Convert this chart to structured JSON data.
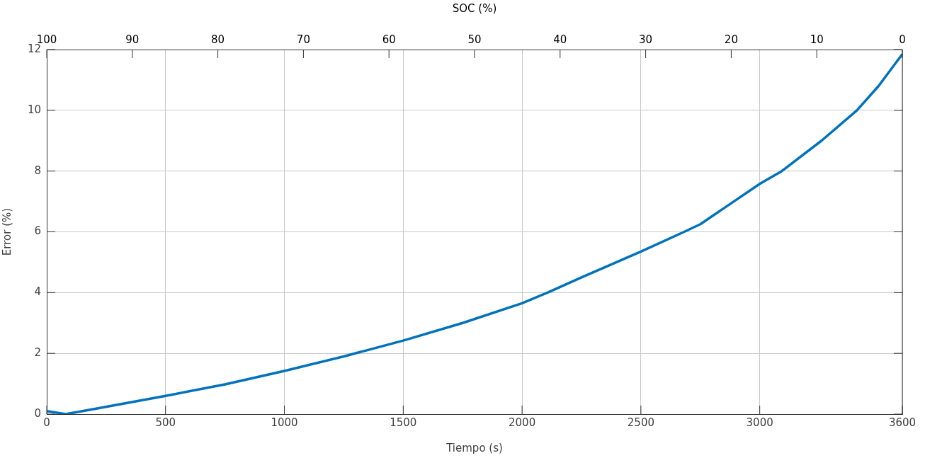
{
  "chart_data": {
    "type": "line",
    "xlabel": "Tiempo (s)",
    "ylabel": "Error (%)",
    "x2label": "SOC (%)",
    "x": [
      0,
      80,
      200,
      500,
      750,
      1000,
      1250,
      1500,
      1750,
      2000,
      2107,
      2250,
      2500,
      2682,
      2750,
      3000,
      3093,
      3260,
      3409,
      3500,
      3600
    ],
    "series": [
      {
        "color": "#0072bd",
        "values": [
          0.1,
          0.0,
          0.17,
          0.6,
          0.98,
          1.42,
          1.9,
          2.42,
          3.0,
          3.65,
          4.0,
          4.5,
          5.35,
          6.0,
          6.25,
          7.58,
          8.0,
          9.0,
          10.0,
          10.8,
          11.85
        ]
      }
    ],
    "xlim": [
      0,
      3600
    ],
    "xticks": [
      0,
      500,
      1000,
      1500,
      2000,
      2500,
      3000,
      3600
    ],
    "ylim": [
      0,
      12
    ],
    "yticks": [
      0,
      2,
      4,
      6,
      8,
      10,
      12
    ],
    "x2lim": [
      100,
      0
    ],
    "x2ticks": [
      100,
      90,
      80,
      70,
      60,
      50,
      40,
      30,
      20,
      10,
      0
    ],
    "grid": true,
    "legend": false,
    "marker": "none",
    "line_style": "solid"
  }
}
